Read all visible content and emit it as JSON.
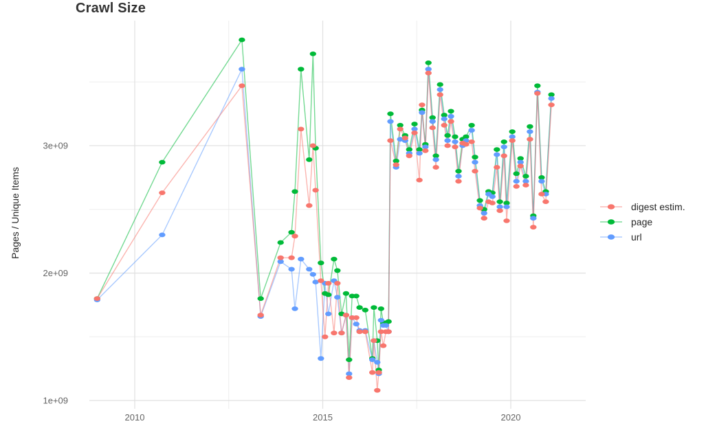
{
  "title": "Crawl Size",
  "chart_data": {
    "type": "line",
    "title": "Crawl Size",
    "xlabel": "",
    "ylabel": "Pages / Unique Items",
    "grid": true,
    "legend_position": "right",
    "xlim": [
      2008.8,
      2022.0
    ],
    "ylim_billions": [
      0.94,
      3.98
    ],
    "y_scale_factor": 1000000000.0,
    "x_axis": {
      "major": [
        2010,
        2015,
        2020
      ],
      "labels": [
        "2010",
        "2015",
        "2020"
      ],
      "minor": [
        2012.5,
        2017.5
      ]
    },
    "y_axis": {
      "major": [
        1,
        2,
        3
      ],
      "labels": [
        "1e+09",
        "2e+09",
        "3e+09"
      ],
      "minor": [
        1.5,
        2.5,
        3.5
      ]
    },
    "x": [
      2009.0,
      2010.73,
      2012.85,
      2013.35,
      2013.88,
      2014.17,
      2014.26,
      2014.42,
      2014.64,
      2014.74,
      2014.81,
      2014.95,
      2015.06,
      2015.15,
      2015.3,
      2015.39,
      2015.5,
      2015.62,
      2015.7,
      2015.78,
      2015.89,
      2015.98,
      2016.13,
      2016.32,
      2016.36,
      2016.45,
      2016.49,
      2016.55,
      2016.61,
      2016.68,
      2016.75,
      2016.8,
      2016.95,
      2017.06,
      2017.19,
      2017.3,
      2017.44,
      2017.57,
      2017.64,
      2017.73,
      2017.81,
      2017.92,
      2018.01,
      2018.12,
      2018.23,
      2018.32,
      2018.41,
      2018.52,
      2018.61,
      2018.72,
      2018.81,
      2018.96,
      2019.05,
      2019.18,
      2019.29,
      2019.41,
      2019.51,
      2019.63,
      2019.71,
      2019.82,
      2019.89,
      2020.04,
      2020.15,
      2020.26,
      2020.4,
      2020.51,
      2020.6,
      2020.71,
      2020.82,
      2020.93,
      2021.08
    ],
    "series": [
      {
        "name": "digest estim.",
        "color": "#F8766D",
        "values_billions": [
          1.8,
          2.63,
          3.47,
          1.67,
          2.12,
          2.12,
          2.29,
          3.13,
          2.53,
          3.0,
          2.65,
          1.94,
          1.5,
          1.92,
          1.53,
          1.92,
          1.53,
          1.67,
          1.18,
          1.65,
          1.65,
          1.54,
          1.54,
          1.22,
          1.47,
          1.08,
          1.22,
          1.54,
          1.43,
          1.54,
          1.54,
          3.04,
          2.85,
          3.13,
          3.06,
          2.92,
          3.1,
          2.73,
          3.32,
          2.96,
          3.57,
          3.14,
          2.83,
          3.4,
          3.16,
          3.0,
          3.19,
          2.99,
          2.72,
          3.02,
          3.01,
          3.03,
          2.8,
          2.51,
          2.43,
          2.56,
          2.55,
          2.83,
          2.49,
          2.92,
          2.41,
          3.04,
          2.68,
          2.84,
          2.69,
          3.05,
          2.36,
          3.41,
          2.62,
          2.56,
          3.32
        ]
      },
      {
        "name": "page",
        "color": "#00BA38",
        "values_billions": [
          1.8,
          2.87,
          3.83,
          1.8,
          2.24,
          2.32,
          2.64,
          3.6,
          2.89,
          3.72,
          2.98,
          2.08,
          1.84,
          1.83,
          2.11,
          2.02,
          1.68,
          1.84,
          1.32,
          1.82,
          1.82,
          1.73,
          1.71,
          1.33,
          1.73,
          1.47,
          1.24,
          1.72,
          1.61,
          1.61,
          1.62,
          3.25,
          2.88,
          3.16,
          3.08,
          2.97,
          3.17,
          2.97,
          3.28,
          3.01,
          3.65,
          3.22,
          2.92,
          3.48,
          3.24,
          3.08,
          3.27,
          3.07,
          2.8,
          3.05,
          3.07,
          3.16,
          2.91,
          2.57,
          2.5,
          2.64,
          2.63,
          2.97,
          2.56,
          3.03,
          2.55,
          3.11,
          2.78,
          2.9,
          2.76,
          3.15,
          2.45,
          3.47,
          2.75,
          2.64,
          3.4
        ]
      },
      {
        "name": "url",
        "color": "#619CFF",
        "values_billions": [
          1.79,
          2.3,
          3.6,
          1.66,
          2.09,
          2.03,
          1.72,
          2.11,
          2.03,
          1.99,
          1.93,
          1.33,
          1.92,
          1.68,
          1.94,
          1.81,
          1.53,
          1.67,
          1.21,
          1.65,
          1.6,
          1.55,
          1.55,
          1.32,
          1.47,
          1.3,
          1.21,
          1.63,
          1.59,
          1.59,
          1.54,
          3.19,
          2.83,
          3.05,
          3.04,
          2.94,
          3.13,
          2.94,
          3.26,
          2.99,
          3.6,
          3.19,
          2.89,
          3.44,
          3.21,
          3.04,
          3.23,
          3.03,
          2.76,
          3.0,
          3.04,
          3.12,
          2.87,
          2.53,
          2.47,
          2.62,
          2.6,
          2.93,
          2.52,
          2.99,
          2.52,
          3.07,
          2.72,
          2.87,
          2.72,
          3.11,
          2.43,
          3.42,
          2.72,
          2.62,
          3.37
        ]
      }
    ]
  }
}
